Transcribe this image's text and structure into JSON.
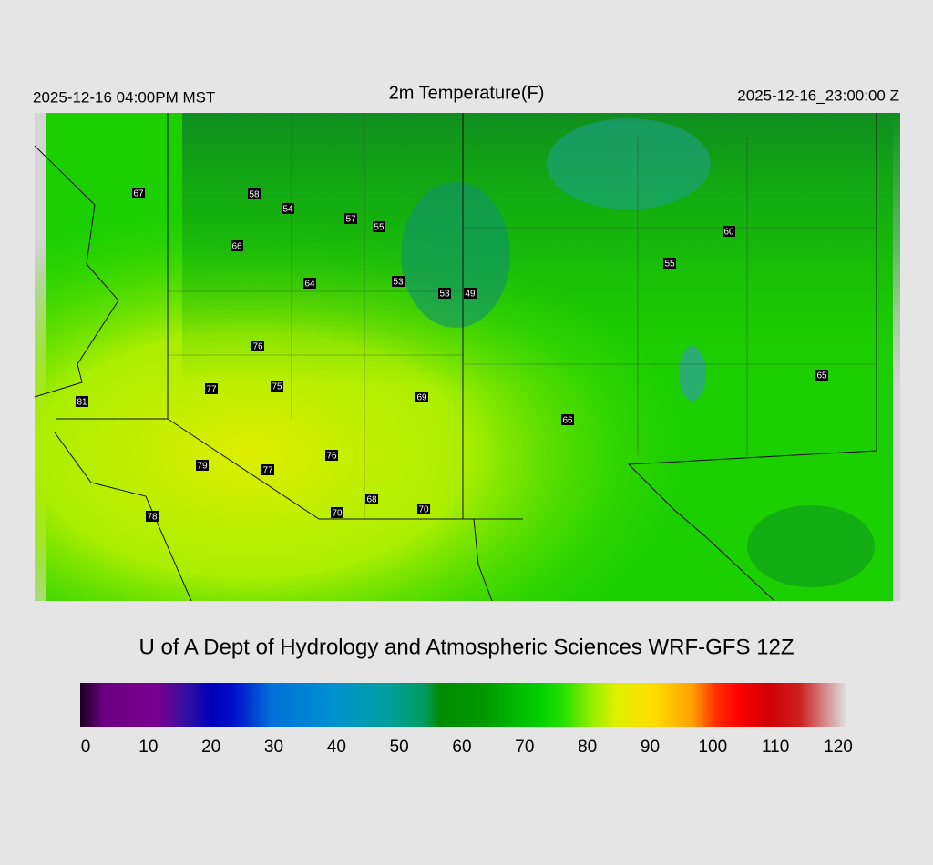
{
  "header": {
    "left": "2025-12-16 04:00PM MST",
    "title": "2m Temperature(F)",
    "right": "2025-12-16_23:00:00 Z"
  },
  "stations": [
    67,
    58,
    54,
    57,
    55,
    66,
    64,
    53,
    53,
    49,
    76,
    77,
    75,
    81,
    69,
    76,
    79,
    77,
    68,
    70,
    70,
    78,
    60,
    55,
    65,
    66
  ],
  "credit": "U of A Dept of Hydrology and Atmospheric Sciences WRF-GFS 12Z",
  "colorbar": {
    "range": [
      0,
      120
    ],
    "ticks": [
      0,
      10,
      20,
      30,
      40,
      50,
      60,
      70,
      80,
      90,
      100,
      110,
      120
    ]
  }
}
